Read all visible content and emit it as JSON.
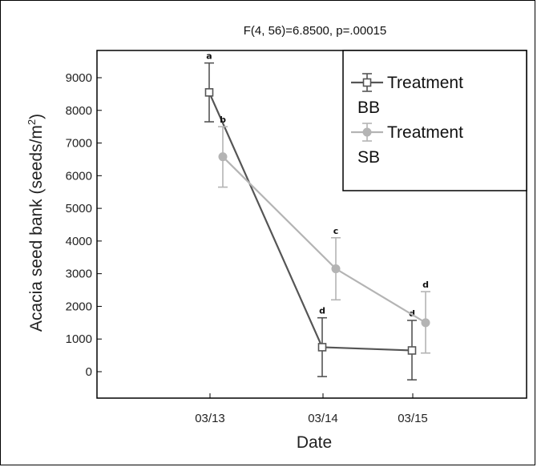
{
  "chart_data": {
    "type": "line",
    "title": "F(4, 56)=6.8500, p=.00015",
    "xlabel": "Date",
    "ylabel_main": "Acacia seed bank (seeds/m",
    "ylabel_sup": "2",
    "ylabel_end": ")",
    "categories": [
      "03/13",
      "03/14",
      "03/15"
    ],
    "ylim": [
      -900,
      10000
    ],
    "yticks": [
      0,
      1000,
      2000,
      3000,
      4000,
      5000,
      6000,
      7000,
      8000,
      9000
    ],
    "legend_position": "top-right",
    "series": [
      {
        "name_line1": "Treatment",
        "name_line2": "BB",
        "color": "#555555",
        "marker": "square",
        "values": [
          8550,
          750,
          650
        ],
        "err_low": [
          7650,
          -150,
          -250
        ],
        "err_high": [
          9450,
          1650,
          1570
        ],
        "labels": [
          "a",
          "d",
          "d"
        ]
      },
      {
        "name_line1": "Treatment",
        "name_line2": "SB",
        "color": "#b4b4b4",
        "marker": "circle",
        "values": [
          6580,
          3150,
          1500
        ],
        "err_low": [
          5650,
          2200,
          570
        ],
        "err_high": [
          7500,
          4100,
          2450
        ],
        "labels": [
          "b",
          "c",
          "d"
        ]
      }
    ]
  }
}
